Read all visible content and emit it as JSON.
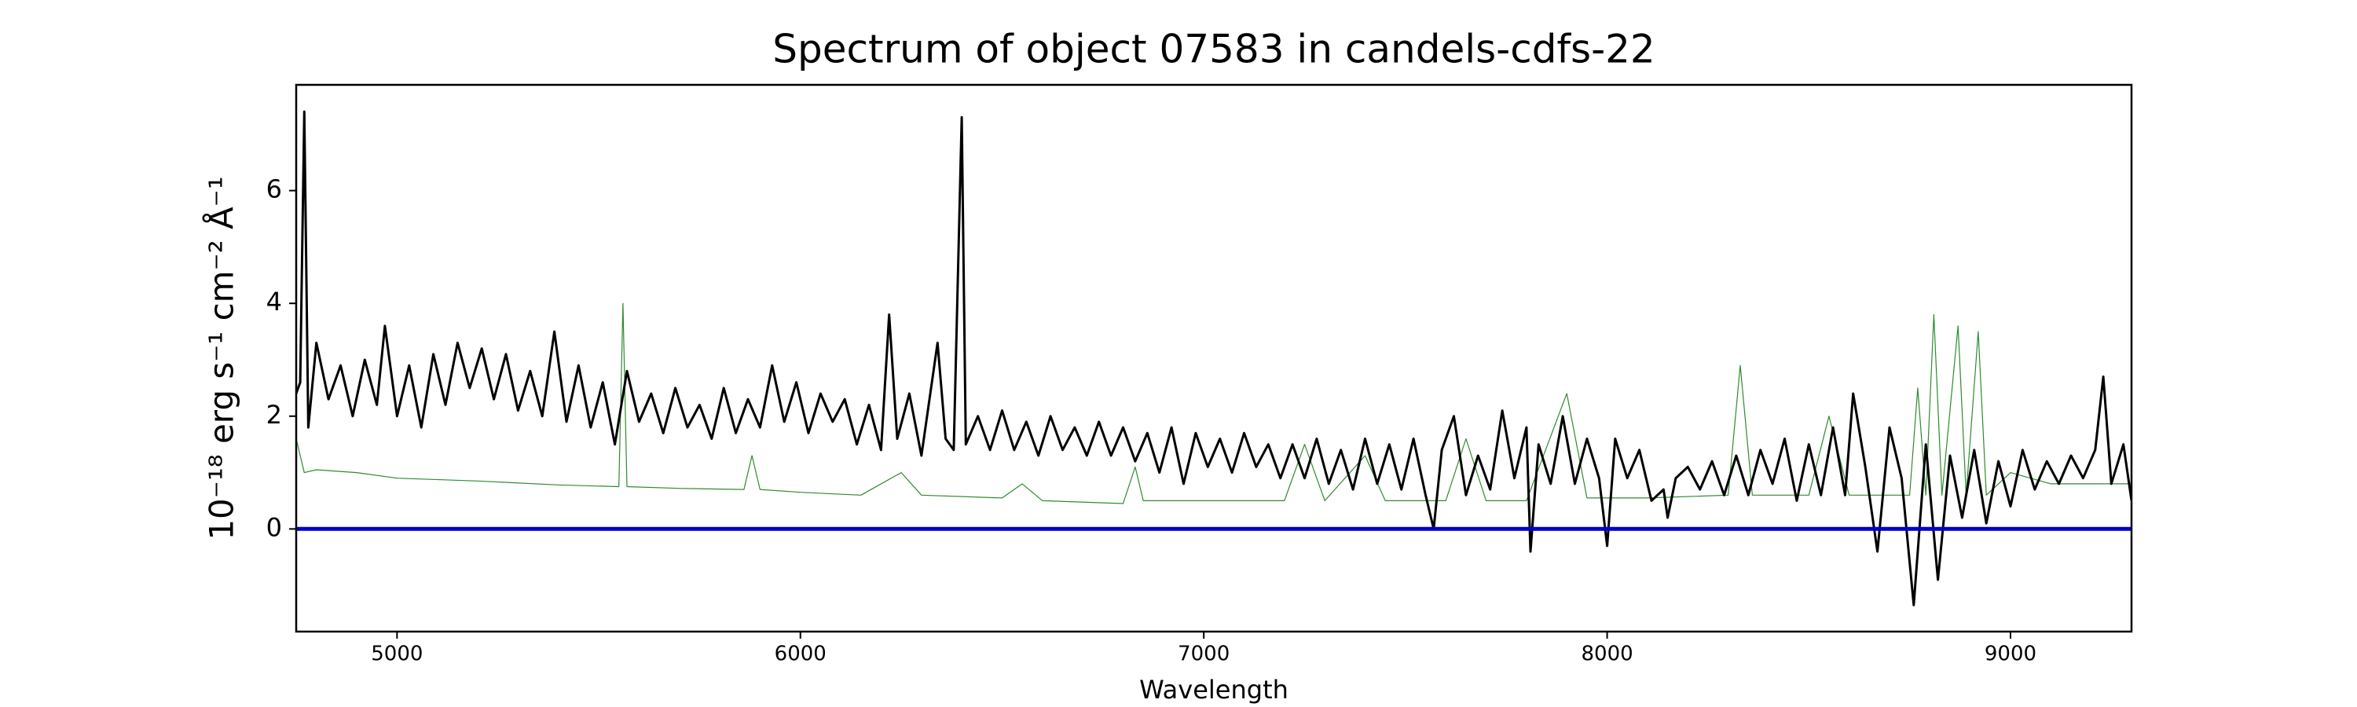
{
  "chart_data": {
    "type": "line",
    "title": "Spectrum of object 07583 in candels-cdfs-22",
    "x_label": "Wavelength",
    "y_label": "10⁻¹⁸ erg s⁻¹ cm⁻² Å⁻¹",
    "xlim": [
      4750,
      9300
    ],
    "xticks": [
      5000,
      6000,
      7000,
      8000,
      9000
    ],
    "ylim": [
      -1.82,
      7.875
    ],
    "yticks": [
      0,
      2,
      4,
      6
    ],
    "series": [
      {
        "color": "#2e8b2e",
        "width": 1.2,
        "x": [
          4750,
          4770,
          4800,
          4900,
          5000,
          5200,
          5400,
          5550,
          5560,
          5570,
          5700,
          5860,
          5880,
          5900,
          6000,
          6150,
          6250,
          6300,
          6500,
          6550,
          6600,
          6800,
          6830,
          6850,
          7000,
          7200,
          7250,
          7300,
          7400,
          7450,
          7600,
          7650,
          7700,
          7800,
          7900,
          7950,
          8100,
          8300,
          8330,
          8360,
          8500,
          8550,
          8600,
          8750,
          8770,
          8790,
          8810,
          8830,
          8870,
          8890,
          8920,
          8940,
          9000,
          9100,
          9300
        ],
        "values": [
          1.6,
          1.0,
          1.05,
          1.0,
          0.9,
          0.85,
          0.78,
          0.75,
          4.0,
          0.75,
          0.72,
          0.7,
          1.3,
          0.7,
          0.65,
          0.6,
          1.0,
          0.6,
          0.55,
          0.8,
          0.5,
          0.45,
          1.1,
          0.5,
          0.5,
          0.5,
          1.5,
          0.5,
          1.3,
          0.5,
          0.5,
          1.6,
          0.5,
          0.5,
          2.4,
          0.55,
          0.55,
          0.6,
          2.9,
          0.6,
          0.6,
          2.0,
          0.6,
          0.6,
          2.5,
          0.6,
          3.8,
          0.6,
          3.6,
          0.6,
          3.5,
          0.6,
          1.0,
          0.8,
          0.8
        ]
      },
      {
        "color": "#000000",
        "width": 3,
        "x": [
          4750,
          4760,
          4770,
          4780,
          4800,
          4830,
          4860,
          4890,
          4920,
          4950,
          4970,
          5000,
          5030,
          5060,
          5090,
          5120,
          5150,
          5180,
          5210,
          5240,
          5270,
          5300,
          5330,
          5360,
          5390,
          5420,
          5450,
          5480,
          5510,
          5540,
          5570,
          5600,
          5630,
          5660,
          5690,
          5720,
          5750,
          5780,
          5810,
          5840,
          5870,
          5900,
          5930,
          5960,
          5990,
          6020,
          6050,
          6080,
          6110,
          6140,
          6170,
          6200,
          6220,
          6240,
          6270,
          6300,
          6340,
          6360,
          6380,
          6400,
          6410,
          6440,
          6470,
          6500,
          6530,
          6560,
          6590,
          6620,
          6650,
          6680,
          6710,
          6740,
          6770,
          6800,
          6830,
          6860,
          6890,
          6920,
          6950,
          6980,
          7010,
          7040,
          7070,
          7100,
          7130,
          7160,
          7190,
          7220,
          7250,
          7280,
          7310,
          7340,
          7370,
          7400,
          7430,
          7460,
          7490,
          7520,
          7550,
          7570,
          7590,
          7620,
          7650,
          7680,
          7710,
          7740,
          7770,
          7800,
          7810,
          7830,
          7860,
          7890,
          7920,
          7950,
          7980,
          8000,
          8020,
          8050,
          8080,
          8110,
          8140,
          8150,
          8170,
          8200,
          8230,
          8260,
          8290,
          8320,
          8350,
          8380,
          8410,
          8440,
          8470,
          8500,
          8530,
          8560,
          8590,
          8610,
          8640,
          8670,
          8700,
          8730,
          8760,
          8790,
          8820,
          8850,
          8880,
          8910,
          8940,
          8970,
          9000,
          9030,
          9060,
          9090,
          9120,
          9150,
          9180,
          9210,
          9230,
          9250,
          9280,
          9300
        ],
        "values": [
          2.4,
          2.6,
          7.4,
          1.8,
          3.3,
          2.3,
          2.9,
          2.0,
          3.0,
          2.2,
          3.6,
          2.0,
          2.9,
          1.8,
          3.1,
          2.2,
          3.3,
          2.5,
          3.2,
          2.3,
          3.1,
          2.1,
          2.8,
          2.0,
          3.5,
          1.9,
          2.9,
          1.8,
          2.6,
          1.5,
          2.8,
          1.9,
          2.4,
          1.7,
          2.5,
          1.8,
          2.2,
          1.6,
          2.5,
          1.7,
          2.3,
          1.8,
          2.9,
          1.9,
          2.6,
          1.7,
          2.4,
          1.9,
          2.3,
          1.5,
          2.2,
          1.4,
          3.8,
          1.6,
          2.4,
          1.3,
          3.3,
          1.6,
          1.4,
          7.3,
          1.5,
          2.0,
          1.4,
          2.1,
          1.4,
          1.9,
          1.3,
          2.0,
          1.4,
          1.8,
          1.3,
          1.9,
          1.3,
          1.8,
          1.2,
          1.7,
          1.0,
          1.8,
          0.8,
          1.7,
          1.1,
          1.6,
          1.0,
          1.7,
          1.1,
          1.5,
          0.9,
          1.5,
          0.9,
          1.6,
          0.8,
          1.4,
          0.7,
          1.6,
          0.8,
          1.5,
          0.7,
          1.6,
          0.6,
          0.0,
          1.4,
          2.0,
          0.6,
          1.3,
          0.7,
          2.1,
          0.9,
          1.8,
          -0.4,
          1.5,
          0.8,
          2.0,
          0.8,
          1.6,
          0.9,
          -0.3,
          1.6,
          0.9,
          1.4,
          0.5,
          0.7,
          0.2,
          0.9,
          1.1,
          0.7,
          1.2,
          0.6,
          1.3,
          0.6,
          1.4,
          0.8,
          1.6,
          0.5,
          1.5,
          0.6,
          1.8,
          0.6,
          2.4,
          1.1,
          -0.4,
          1.8,
          0.9,
          -1.35,
          1.5,
          -0.9,
          1.3,
          0.2,
          1.4,
          0.1,
          1.2,
          0.4,
          1.4,
          0.7,
          1.2,
          0.8,
          1.3,
          0.9,
          1.4,
          2.7,
          0.8,
          1.5,
          0.5
        ]
      },
      {
        "color": "#0000cc",
        "width": 5,
        "x": [
          4750,
          9300
        ],
        "values": [
          0,
          0
        ]
      }
    ]
  }
}
